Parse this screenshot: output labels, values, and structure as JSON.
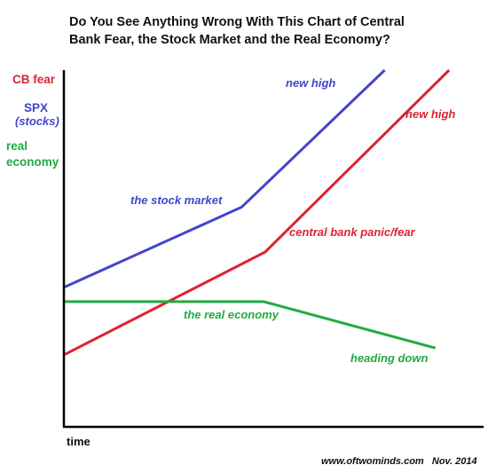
{
  "chart_data": {
    "type": "line",
    "title_line1": "Do You See Anything Wrong With This Chart of Central",
    "title_line2": "Bank Fear, the Stock Market and the Real Economy?",
    "xlabel": "time",
    "legend": {
      "cb_fear": "CB fear",
      "spx_line1": "SPX",
      "spx_line2": "(stocks)",
      "real_line1": "real",
      "real_line2": "economy"
    },
    "xlim": [
      0,
      10
    ],
    "ylim": [
      0,
      10
    ],
    "grid": false,
    "series": [
      {
        "key": "stocks",
        "color": "#4444cc",
        "x": [
          0,
          4.36,
          7.89
        ],
        "y": [
          3.92,
          6.16,
          10.0
        ]
      },
      {
        "key": "cbfear",
        "color": "#dd2233",
        "x": [
          0,
          4.94,
          9.48
        ],
        "y": [
          2.03,
          4.9,
          10.0
        ]
      },
      {
        "key": "real",
        "color": "#22aa44",
        "x": [
          0,
          4.91,
          9.14
        ],
        "y": [
          3.51,
          3.51,
          2.21
        ]
      }
    ],
    "annotations": {
      "stock_new_high": "new high",
      "the_stock_market": "the stock market",
      "cb_new_high": "new high",
      "central_bank": "central bank panic/fear",
      "the_real_economy": "the real economy",
      "heading_down": "heading down"
    },
    "credit": "www.oftwominds.com   Nov. 2014"
  }
}
